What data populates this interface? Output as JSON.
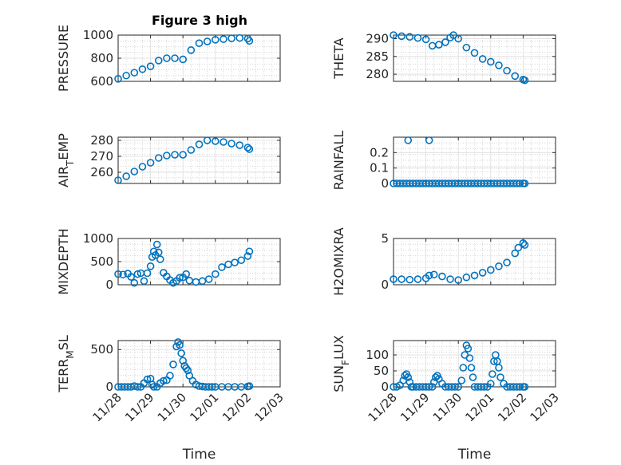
{
  "figure_title": "Figure 3 high",
  "chart_data": [
    {
      "type": "scatter",
      "ylabel": "PRESSURE",
      "ylim": [
        600,
        1000
      ],
      "yticks": [
        600,
        800,
        1000
      ],
      "xlabel": "",
      "xlim": [
        0,
        5
      ],
      "xticks": [
        "11/28",
        "11/29",
        "11/30",
        "12/01",
        "12/02",
        "12/03"
      ],
      "x": [
        0,
        0.25,
        0.5,
        0.75,
        1.0,
        1.25,
        1.5,
        1.75,
        2.0,
        2.25,
        2.5,
        2.75,
        3.0,
        3.25,
        3.5,
        3.75,
        4.0,
        4.05
      ],
      "y": [
        622,
        650,
        675,
        705,
        730,
        780,
        800,
        800,
        790,
        870,
        930,
        945,
        960,
        965,
        972,
        975,
        970,
        950
      ]
    },
    {
      "type": "scatter",
      "ylabel": "THETA",
      "ylim": [
        278,
        291
      ],
      "yticks": [
        280,
        285,
        290
      ],
      "xlabel": "",
      "xlim": [
        0,
        5
      ],
      "xticks": [
        "11/28",
        "11/29",
        "11/30",
        "12/01",
        "12/02",
        "12/03"
      ],
      "x": [
        0,
        0.25,
        0.5,
        0.75,
        1.0,
        1.2,
        1.4,
        1.6,
        1.75,
        1.85,
        2.0,
        2.25,
        2.5,
        2.75,
        3.0,
        3.25,
        3.5,
        3.75,
        4.0,
        4.05
      ],
      "y": [
        291,
        290.7,
        290.5,
        290.2,
        289.8,
        288,
        288.3,
        289,
        290.3,
        291,
        290,
        287.5,
        286,
        284.3,
        283.5,
        282.5,
        281,
        279.5,
        278.5,
        278.3
      ]
    },
    {
      "type": "scatter",
      "ylabel": "AIR_TEMP",
      "ylim": [
        253,
        282
      ],
      "yticks": [
        260,
        270,
        280
      ],
      "xlabel": "",
      "xlim": [
        0,
        5
      ],
      "xticks": [
        "11/28",
        "11/29",
        "11/30",
        "12/01",
        "12/02",
        "12/03"
      ],
      "x": [
        0,
        0.25,
        0.5,
        0.75,
        1.0,
        1.25,
        1.5,
        1.75,
        2.0,
        2.25,
        2.5,
        2.75,
        3.0,
        3.25,
        3.5,
        3.75,
        4.0,
        4.05
      ],
      "y": [
        255,
        257.5,
        260.5,
        263.5,
        266,
        269,
        270.5,
        271,
        271,
        274,
        277.5,
        280,
        279.5,
        279,
        278,
        277,
        275.5,
        274.5
      ]
    },
    {
      "type": "scatter",
      "ylabel": "RAINFALL",
      "ylim": [
        0,
        0.3
      ],
      "yticks": [
        0,
        0.1,
        0.2
      ],
      "xlabel": "",
      "xlim": [
        0,
        5
      ],
      "xticks": [
        "11/28",
        "11/29",
        "11/30",
        "12/01",
        "12/02",
        "12/03"
      ],
      "x": [
        0.0,
        0.1,
        0.2,
        0.3,
        0.4,
        0.5,
        0.6,
        0.7,
        0.8,
        0.9,
        1.0,
        1.1,
        1.2,
        1.3,
        1.4,
        1.5,
        1.6,
        1.7,
        1.8,
        1.9,
        2.0,
        2.1,
        2.2,
        2.3,
        2.4,
        2.5,
        2.6,
        2.7,
        2.8,
        2.9,
        3.0,
        3.1,
        3.2,
        3.3,
        3.4,
        3.5,
        3.6,
        3.7,
        3.8,
        3.9,
        4.0,
        4.05,
        0.45,
        1.1
      ],
      "y": [
        0,
        0,
        0,
        0,
        0,
        0,
        0,
        0,
        0,
        0,
        0,
        0,
        0,
        0,
        0,
        0,
        0,
        0,
        0,
        0,
        0,
        0,
        0,
        0,
        0,
        0,
        0,
        0,
        0,
        0,
        0,
        0,
        0,
        0,
        0,
        0,
        0,
        0,
        0,
        0,
        0,
        0,
        0.28,
        0.28
      ]
    },
    {
      "type": "scatter",
      "ylabel": "MIXDEPTH",
      "ylim": [
        0,
        1000
      ],
      "yticks": [
        0,
        500,
        1000
      ],
      "xlabel": "",
      "xlim": [
        0,
        5
      ],
      "xticks": [
        "11/28",
        "11/29",
        "11/30",
        "12/01",
        "12/02",
        "12/03"
      ],
      "x": [
        0,
        0.15,
        0.3,
        0.4,
        0.5,
        0.6,
        0.7,
        0.8,
        0.9,
        1.0,
        1.05,
        1.1,
        1.15,
        1.2,
        1.25,
        1.3,
        1.4,
        1.5,
        1.6,
        1.7,
        1.8,
        1.9,
        2.0,
        2.1,
        2.2,
        2.4,
        2.6,
        2.8,
        3.0,
        3.2,
        3.4,
        3.6,
        3.8,
        4.0,
        4.05
      ],
      "y": [
        230,
        220,
        240,
        170,
        40,
        230,
        250,
        80,
        250,
        400,
        600,
        720,
        640,
        870,
        700,
        550,
        260,
        180,
        100,
        40,
        80,
        150,
        160,
        230,
        90,
        60,
        80,
        120,
        230,
        380,
        440,
        480,
        530,
        620,
        720
      ]
    },
    {
      "type": "scatter",
      "ylabel": "H2OMIXRA",
      "ylim": [
        0,
        5
      ],
      "yticks": [
        0,
        5
      ],
      "xlabel": "",
      "xlim": [
        0,
        5
      ],
      "xticks": [
        "11/28",
        "11/29",
        "11/30",
        "12/01",
        "12/02",
        "12/03"
      ],
      "x": [
        0,
        0.25,
        0.5,
        0.75,
        1.0,
        1.1,
        1.25,
        1.5,
        1.75,
        2.0,
        2.25,
        2.5,
        2.75,
        3.0,
        3.25,
        3.5,
        3.75,
        3.85,
        4.0,
        4.05
      ],
      "y": [
        0.6,
        0.6,
        0.55,
        0.6,
        0.7,
        1.0,
        1.1,
        0.9,
        0.6,
        0.5,
        0.8,
        1.0,
        1.3,
        1.6,
        2.0,
        2.4,
        3.4,
        4.0,
        4.5,
        4.3
      ]
    },
    {
      "type": "scatter",
      "ylabel": "TERR_MSL",
      "ylim": [
        0,
        620
      ],
      "yticks": [
        0,
        500
      ],
      "xlabel": "Time",
      "xlim": [
        0,
        5
      ],
      "xticks": [
        "11/28",
        "11/29",
        "11/30",
        "12/01",
        "12/02",
        "12/03"
      ],
      "x": [
        0.0,
        0.1,
        0.2,
        0.3,
        0.4,
        0.5,
        0.6,
        0.7,
        0.8,
        0.9,
        1.0,
        1.05,
        1.1,
        1.2,
        1.3,
        1.4,
        1.5,
        1.6,
        1.7,
        1.8,
        1.85,
        1.9,
        1.95,
        2.0,
        2.05,
        2.1,
        2.15,
        2.2,
        2.3,
        2.4,
        2.5,
        2.6,
        2.7,
        2.8,
        2.9,
        3.0,
        3.2,
        3.4,
        3.6,
        3.8,
        4.0,
        4.05
      ],
      "y": [
        0,
        0,
        0,
        0,
        0,
        10,
        0,
        0,
        50,
        100,
        110,
        30,
        0,
        0,
        50,
        80,
        90,
        150,
        300,
        540,
        600,
        560,
        450,
        350,
        280,
        250,
        220,
        150,
        80,
        30,
        10,
        5,
        0,
        0,
        0,
        0,
        0,
        0,
        0,
        0,
        5,
        10
      ]
    },
    {
      "type": "scatter",
      "ylabel": "SUN_FLUX",
      "ylim": [
        0,
        145
      ],
      "yticks": [
        0,
        50,
        100
      ],
      "xlabel": "Time",
      "xlim": [
        0,
        5
      ],
      "xticks": [
        "11/28",
        "11/29",
        "11/30",
        "12/01",
        "12/02",
        "12/03"
      ],
      "x": [
        0.0,
        0.1,
        0.2,
        0.3,
        0.35,
        0.4,
        0.45,
        0.5,
        0.55,
        0.6,
        0.7,
        0.8,
        0.9,
        1.0,
        1.1,
        1.2,
        1.25,
        1.3,
        1.35,
        1.4,
        1.5,
        1.6,
        1.7,
        1.8,
        1.9,
        2.0,
        2.1,
        2.15,
        2.2,
        2.25,
        2.3,
        2.35,
        2.4,
        2.45,
        2.5,
        2.6,
        2.7,
        2.8,
        2.9,
        3.0,
        3.05,
        3.1,
        3.15,
        3.2,
        3.25,
        3.3,
        3.4,
        3.5,
        3.6,
        3.7,
        3.8,
        3.9,
        4.0,
        4.05
      ],
      "y": [
        0,
        0,
        5,
        20,
        35,
        40,
        30,
        15,
        0,
        0,
        0,
        0,
        0,
        0,
        0,
        0,
        15,
        30,
        35,
        25,
        10,
        0,
        0,
        0,
        0,
        0,
        20,
        60,
        100,
        130,
        120,
        90,
        60,
        30,
        0,
        0,
        0,
        0,
        0,
        10,
        40,
        80,
        100,
        80,
        60,
        30,
        10,
        0,
        0,
        0,
        0,
        0,
        0,
        0
      ]
    }
  ]
}
